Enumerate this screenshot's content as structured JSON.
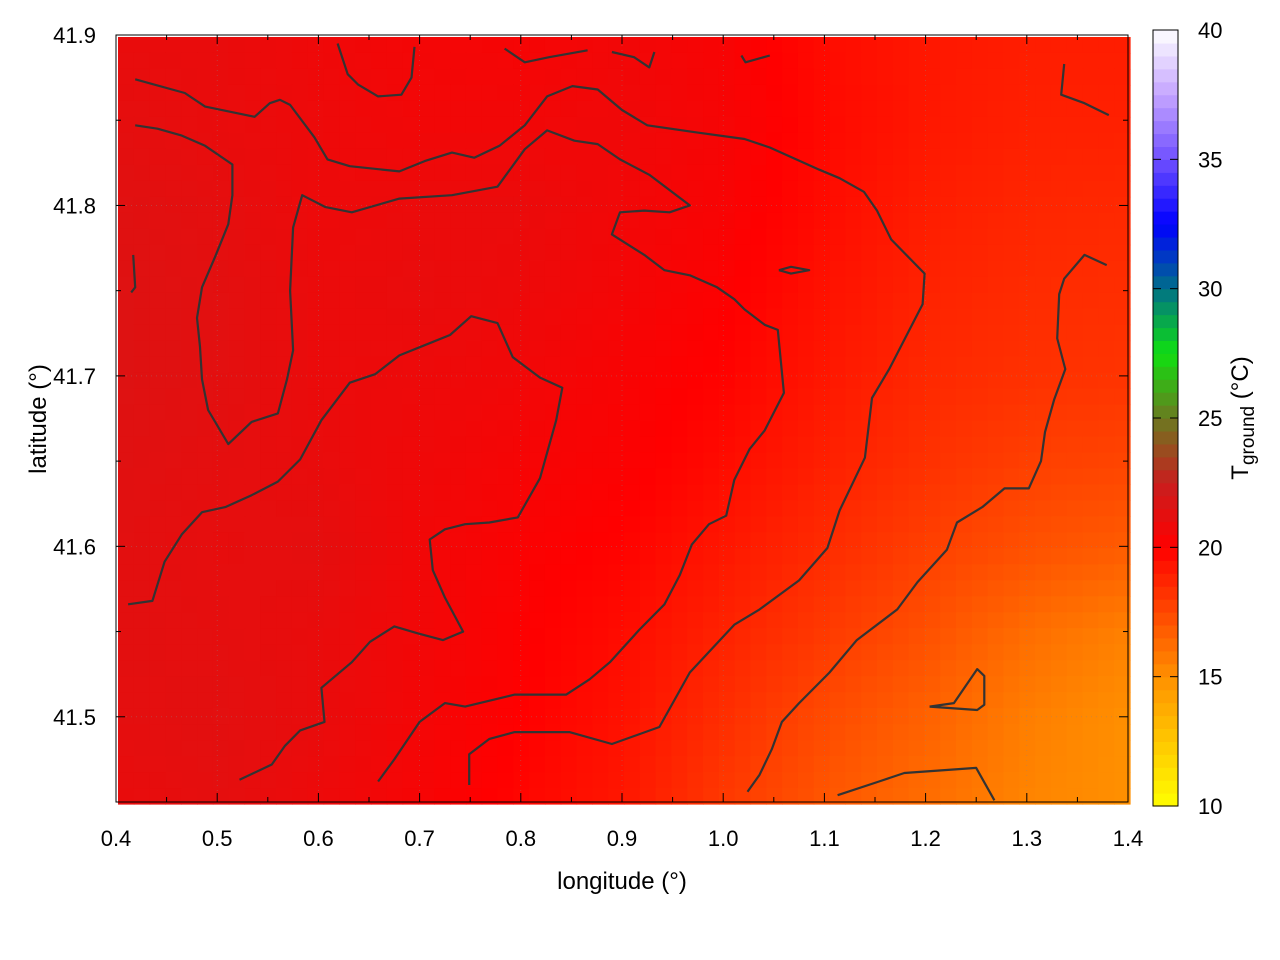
{
  "chart_data": {
    "type": "heatmap",
    "xlabel": "longitude (°)",
    "ylabel": "latitude (°)",
    "colorbar_label": {
      "main": "T",
      "subscript": "ground",
      "unit": " (°C)"
    },
    "xlim": [
      0.4,
      1.4
    ],
    "ylim": [
      41.45,
      41.9
    ],
    "clim": [
      10,
      40
    ],
    "grid": true,
    "x_ticks": [
      "0.4",
      "0.5",
      "0.6",
      "0.7",
      "0.8",
      "0.9",
      "1.0",
      "1.1",
      "1.2",
      "1.3",
      "1.4"
    ],
    "y_ticks": [
      "41.5",
      "41.6",
      "41.7",
      "41.8",
      "41.9"
    ],
    "colorbar_ticks": [
      "10",
      "15",
      "20",
      "25",
      "30",
      "35",
      "40"
    ],
    "colormap": [
      [
        10,
        "#ffff00"
      ],
      [
        15,
        "#ff9000"
      ],
      [
        20,
        "#ff0000"
      ],
      [
        22.5,
        "#c81e1e"
      ],
      [
        25,
        "#6b7a20"
      ],
      [
        27.5,
        "#10e010"
      ],
      [
        30,
        "#007088"
      ],
      [
        32.5,
        "#0000ff"
      ],
      [
        35,
        "#7050ff"
      ],
      [
        37.5,
        "#c4a4ff"
      ],
      [
        40,
        "#ffffff"
      ]
    ],
    "contour_color": "#333333",
    "grid_lon": [
      0.4,
      0.5,
      0.6,
      0.7,
      0.8,
      0.9,
      1.0,
      1.1,
      1.2,
      1.3,
      1.4
    ],
    "grid_lat": [
      41.9,
      41.85,
      41.8,
      41.75,
      41.7,
      41.65,
      41.6,
      41.55,
      41.5,
      41.45
    ],
    "temperature": [
      [
        21.0,
        21.0,
        20.7,
        20.5,
        20.4,
        20.6,
        20.3,
        19.6,
        19.2,
        19.0,
        19.0
      ],
      [
        21.2,
        21.0,
        20.8,
        20.6,
        20.6,
        20.7,
        20.4,
        19.7,
        19.2,
        18.9,
        18.9
      ],
      [
        21.4,
        21.2,
        20.8,
        20.9,
        20.9,
        20.6,
        20.3,
        19.6,
        19.0,
        18.7,
        18.6
      ],
      [
        21.5,
        21.3,
        20.9,
        21.0,
        20.8,
        20.5,
        20.1,
        19.4,
        18.8,
        18.5,
        18.4
      ],
      [
        21.5,
        21.3,
        20.9,
        20.8,
        20.6,
        20.3,
        19.9,
        19.2,
        18.6,
        18.3,
        18.2
      ],
      [
        21.4,
        21.2,
        21.0,
        20.7,
        20.4,
        20.2,
        19.6,
        18.9,
        18.3,
        17.8,
        17.6
      ],
      [
        21.3,
        21.1,
        21.2,
        20.6,
        20.2,
        19.9,
        19.2,
        18.5,
        17.8,
        17.2,
        16.8
      ],
      [
        21.3,
        21.2,
        21.0,
        20.6,
        20.1,
        19.6,
        18.8,
        18.0,
        17.2,
        16.2,
        15.5
      ],
      [
        21.2,
        21.3,
        21.0,
        20.5,
        20.0,
        19.4,
        18.4,
        17.4,
        16.6,
        15.6,
        15.0
      ],
      [
        21.0,
        21.2,
        20.8,
        20.4,
        19.8,
        19.2,
        18.0,
        17.0,
        16.2,
        15.4,
        15.0
      ]
    ],
    "contours": [
      [
        [
          0.419,
          41.874
        ],
        [
          0.468,
          41.866
        ],
        [
          0.488,
          41.858
        ],
        [
          0.537,
          41.852
        ],
        [
          0.552,
          41.86
        ],
        [
          0.562,
          41.862
        ],
        [
          0.572,
          41.859
        ],
        [
          0.596,
          41.84
        ],
        [
          0.609,
          41.827
        ],
        [
          0.631,
          41.823
        ],
        [
          0.68,
          41.82
        ],
        [
          0.705,
          41.826
        ],
        [
          0.732,
          41.831
        ],
        [
          0.754,
          41.828
        ],
        [
          0.779,
          41.835
        ],
        [
          0.804,
          41.847
        ],
        [
          0.826,
          41.864
        ],
        [
          0.851,
          41.87
        ],
        [
          0.876,
          41.868
        ],
        [
          0.9,
          41.856
        ],
        [
          0.925,
          41.847
        ],
        [
          0.972,
          41.843
        ],
        [
          1.021,
          41.839
        ],
        [
          1.046,
          41.834
        ],
        [
          1.095,
          41.821
        ],
        [
          1.115,
          41.816
        ],
        [
          1.139,
          41.808
        ],
        [
          1.152,
          41.797
        ],
        [
          1.166,
          41.78
        ],
        [
          1.199,
          41.76
        ],
        [
          1.197,
          41.742
        ],
        [
          1.184,
          41.727
        ],
        [
          1.164,
          41.704
        ],
        [
          1.147,
          41.687
        ],
        [
          1.14,
          41.652
        ],
        [
          1.115,
          41.621
        ],
        [
          1.103,
          41.599
        ],
        [
          1.075,
          41.58
        ],
        [
          1.036,
          41.563
        ],
        [
          1.011,
          41.554
        ],
        [
          0.967,
          41.526
        ],
        [
          0.937,
          41.494
        ],
        [
          0.89,
          41.484
        ],
        [
          0.848,
          41.491
        ],
        [
          0.794,
          41.491
        ],
        [
          0.769,
          41.487
        ],
        [
          0.749,
          41.478
        ],
        [
          0.749,
          41.46
        ]
      ],
      [
        [
          0.412,
          41.566
        ],
        [
          0.436,
          41.568
        ],
        [
          0.448,
          41.591
        ],
        [
          0.465,
          41.607
        ],
        [
          0.485,
          41.62
        ],
        [
          0.508,
          41.623
        ],
        [
          0.534,
          41.63
        ],
        [
          0.56,
          41.638
        ],
        [
          0.582,
          41.651
        ],
        [
          0.603,
          41.674
        ],
        [
          0.631,
          41.696
        ],
        [
          0.656,
          41.701
        ],
        [
          0.68,
          41.712
        ],
        [
          0.705,
          41.718
        ],
        [
          0.73,
          41.724
        ],
        [
          0.751,
          41.735
        ],
        [
          0.777,
          41.731
        ],
        [
          0.792,
          41.711
        ],
        [
          0.819,
          41.699
        ],
        [
          0.841,
          41.693
        ],
        [
          0.835,
          41.674
        ],
        [
          0.819,
          41.64
        ],
        [
          0.797,
          41.617
        ],
        [
          0.769,
          41.614
        ],
        [
          0.745,
          41.613
        ],
        [
          0.725,
          41.61
        ],
        [
          0.71,
          41.604
        ],
        [
          0.713,
          41.586
        ],
        [
          0.725,
          41.57
        ],
        [
          0.743,
          41.55
        ],
        [
          0.723,
          41.545
        ],
        [
          0.698,
          41.549
        ],
        [
          0.675,
          41.553
        ],
        [
          0.651,
          41.544
        ],
        [
          0.633,
          41.532
        ],
        [
          0.603,
          41.517
        ],
        [
          0.606,
          41.497
        ],
        [
          0.582,
          41.492
        ],
        [
          0.567,
          41.483
        ],
        [
          0.554,
          41.472
        ],
        [
          0.522,
          41.463
        ]
      ],
      [
        [
          0.659,
          41.462
        ],
        [
          0.675,
          41.475
        ],
        [
          0.7,
          41.497
        ],
        [
          0.725,
          41.508
        ],
        [
          0.745,
          41.506
        ],
        [
          0.794,
          41.513
        ],
        [
          0.845,
          41.513
        ],
        [
          0.868,
          41.522
        ],
        [
          0.888,
          41.532
        ],
        [
          0.917,
          41.551
        ],
        [
          0.942,
          41.566
        ],
        [
          0.957,
          41.583
        ],
        [
          0.969,
          41.601
        ],
        [
          0.986,
          41.613
        ],
        [
          1.003,
          41.618
        ],
        [
          1.011,
          41.639
        ],
        [
          1.026,
          41.657
        ],
        [
          1.041,
          41.668
        ],
        [
          1.06,
          41.69
        ],
        [
          1.054,
          41.727
        ],
        [
          1.041,
          41.73
        ],
        [
          1.021,
          41.739
        ],
        [
          1.011,
          41.745
        ],
        [
          0.994,
          41.752
        ],
        [
          0.967,
          41.759
        ],
        [
          0.942,
          41.762
        ],
        [
          0.922,
          41.771
        ],
        [
          0.89,
          41.783
        ],
        [
          0.898,
          41.796
        ],
        [
          0.922,
          41.797
        ],
        [
          0.947,
          41.796
        ],
        [
          0.967,
          41.8
        ],
        [
          0.927,
          41.818
        ],
        [
          0.898,
          41.827
        ],
        [
          0.876,
          41.836
        ],
        [
          0.853,
          41.838
        ],
        [
          0.826,
          41.844
        ],
        [
          0.804,
          41.833
        ],
        [
          0.777,
          41.811
        ],
        [
          0.732,
          41.806
        ],
        [
          0.68,
          41.804
        ],
        [
          0.633,
          41.796
        ],
        [
          0.607,
          41.799
        ],
        [
          0.584,
          41.806
        ],
        [
          0.575,
          41.787
        ],
        [
          0.572,
          41.75
        ],
        [
          0.575,
          41.715
        ],
        [
          0.569,
          41.698
        ],
        [
          0.56,
          41.678
        ],
        [
          0.534,
          41.673
        ],
        [
          0.511,
          41.66
        ],
        [
          0.491,
          41.68
        ],
        [
          0.485,
          41.698
        ],
        [
          0.483,
          41.717
        ],
        [
          0.48,
          41.734
        ],
        [
          0.485,
          41.752
        ],
        [
          0.498,
          41.77
        ],
        [
          0.511,
          41.789
        ],
        [
          0.515,
          41.806
        ],
        [
          0.515,
          41.824
        ],
        [
          0.488,
          41.835
        ],
        [
          0.465,
          41.841
        ],
        [
          0.441,
          41.845
        ],
        [
          0.419,
          41.847
        ]
      ],
      [
        [
          1.024,
          41.456
        ],
        [
          1.036,
          41.466
        ],
        [
          1.048,
          41.481
        ],
        [
          1.058,
          41.497
        ],
        [
          1.075,
          41.508
        ],
        [
          1.105,
          41.526
        ],
        [
          1.132,
          41.545
        ],
        [
          1.172,
          41.563
        ],
        [
          1.192,
          41.579
        ],
        [
          1.221,
          41.598
        ],
        [
          1.231,
          41.614
        ],
        [
          1.256,
          41.623
        ],
        [
          1.278,
          41.634
        ],
        [
          1.302,
          41.634
        ],
        [
          1.314,
          41.65
        ],
        [
          1.318,
          41.667
        ],
        [
          1.327,
          41.686
        ],
        [
          1.338,
          41.704
        ],
        [
          1.33,
          41.722
        ],
        [
          1.332,
          41.748
        ],
        [
          1.337,
          41.757
        ],
        [
          1.357,
          41.771
        ],
        [
          1.379,
          41.765
        ]
      ],
      [
        [
          1.113,
          41.454
        ],
        [
          1.154,
          41.462
        ],
        [
          1.179,
          41.467
        ],
        [
          1.25,
          41.47
        ],
        [
          1.268,
          41.451
        ]
      ],
      [
        [
          1.204,
          41.506
        ],
        [
          1.228,
          41.508
        ],
        [
          1.251,
          41.528
        ],
        [
          1.258,
          41.524
        ],
        [
          1.258,
          41.507
        ],
        [
          1.251,
          41.504
        ],
        [
          1.204,
          41.506
        ]
      ],
      [
        [
          1.055,
          41.762
        ],
        [
          1.067,
          41.764
        ],
        [
          1.085,
          41.762
        ],
        [
          1.067,
          41.76
        ],
        [
          1.055,
          41.762
        ]
      ],
      [
        [
          0.619,
          41.895
        ],
        [
          0.629,
          41.877
        ],
        [
          0.639,
          41.871
        ],
        [
          0.659,
          41.864
        ],
        [
          0.682,
          41.865
        ],
        [
          0.692,
          41.875
        ],
        [
          0.695,
          41.893
        ]
      ],
      [
        [
          0.784,
          41.892
        ],
        [
          0.804,
          41.884
        ],
        [
          0.828,
          41.887
        ],
        [
          0.866,
          41.891
        ]
      ],
      [
        [
          0.89,
          41.89
        ],
        [
          0.912,
          41.887
        ],
        [
          0.927,
          41.881
        ],
        [
          0.932,
          41.89
        ]
      ],
      [
        [
          1.018,
          41.888
        ],
        [
          1.022,
          41.884
        ],
        [
          1.046,
          41.888
        ]
      ],
      [
        [
          1.337,
          41.883
        ],
        [
          1.334,
          41.865
        ],
        [
          1.357,
          41.86
        ],
        [
          1.381,
          41.853
        ]
      ],
      [
        [
          0.417,
          41.771
        ],
        [
          0.419,
          41.752
        ],
        [
          0.415,
          41.749
        ]
      ]
    ]
  }
}
